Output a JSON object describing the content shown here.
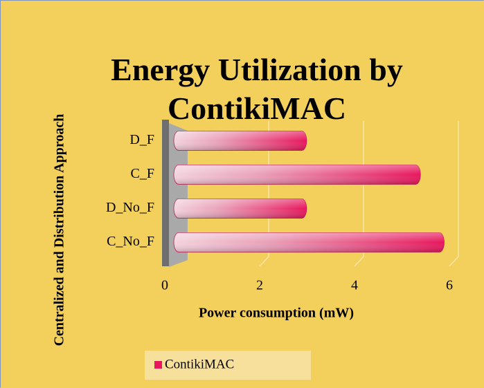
{
  "chart_data": {
    "type": "bar",
    "orientation": "horizontal",
    "title": "Energy Utilization by ContikiMAC",
    "x_label": "Power consumption (mW)",
    "y_label": "Centralized and Distribution Approach",
    "categories": [
      "C_No_F",
      "D_No_F",
      "C_F",
      "D_F"
    ],
    "series": [
      {
        "name": "ContikiMAC",
        "color": "#e8175d",
        "values": [
          5.7,
          2.8,
          5.2,
          2.8
        ]
      }
    ],
    "xlim": [
      0,
      6
    ],
    "xticks": [
      0,
      2,
      4,
      6
    ],
    "grid": true,
    "legend": "bottom"
  }
}
